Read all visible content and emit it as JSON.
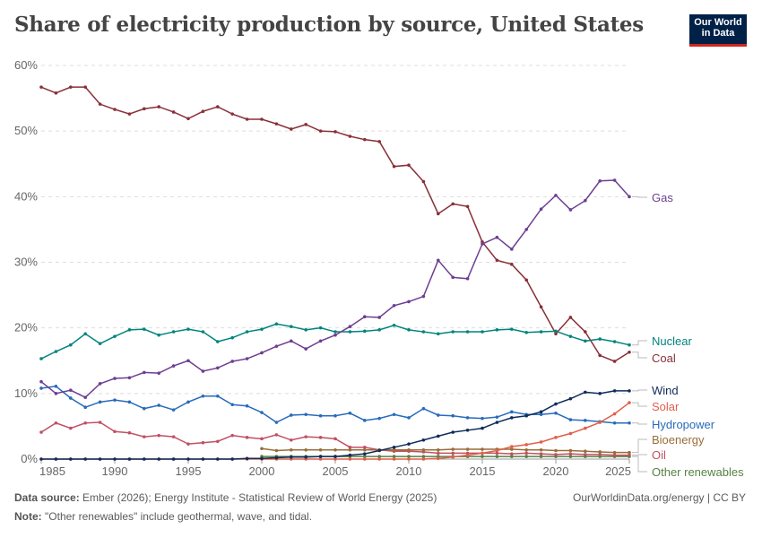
{
  "title": "Share of electricity production by source, United States",
  "logo": {
    "line1": "Our World",
    "line2": "in Data",
    "bg": "#002147",
    "accent": "#ce261e"
  },
  "footer": {
    "source_label": "Data source:",
    "source_text": "Ember (2026); Energy Institute - Statistical Review of World Energy (2025)",
    "note_label": "Note:",
    "note_text": "\"Other renewables\" include geothermal, wave, and tidal.",
    "url": "OurWorldinData.org/energy | CC BY"
  },
  "chart_data": {
    "type": "line",
    "title": "Share of electricity production by source, United States",
    "xlim": [
      1985,
      2025
    ],
    "ylim": [
      0,
      60
    ],
    "y_ticks": [
      "0%",
      "10%",
      "20%",
      "30%",
      "40%",
      "50%",
      "60%"
    ],
    "x_ticks": [
      "1985",
      "1990",
      "1995",
      "2000",
      "2005",
      "2010",
      "2015",
      "2020",
      "2025"
    ],
    "grid": "horizontal dashed",
    "legend": "right, inline labels",
    "series": [
      {
        "name": "Gas",
        "color": "#6d3e91",
        "start": 1985,
        "values": [
          11.8,
          10.0,
          10.5,
          9.4,
          11.5,
          12.3,
          12.4,
          13.2,
          13.1,
          14.2,
          15.0,
          13.4,
          13.9,
          14.9,
          15.3,
          16.2,
          17.2,
          18.0,
          16.8,
          18.0,
          18.9,
          20.2,
          21.7,
          21.6,
          23.4,
          24.0,
          24.8,
          30.3,
          27.7,
          27.5,
          32.8,
          33.8,
          32.0,
          35.0,
          38.1,
          40.2,
          38.0,
          39.4,
          42.4,
          42.5,
          40.0
        ]
      },
      {
        "name": "Nuclear",
        "color": "#00847e",
        "start": 1985,
        "values": [
          15.3,
          16.4,
          17.4,
          19.1,
          17.6,
          18.7,
          19.7,
          19.8,
          18.9,
          19.4,
          19.8,
          19.4,
          17.9,
          18.5,
          19.4,
          19.8,
          20.6,
          20.2,
          19.7,
          20.0,
          19.4,
          19.4,
          19.5,
          19.7,
          20.4,
          19.7,
          19.4,
          19.1,
          19.4,
          19.4,
          19.4,
          19.7,
          19.8,
          19.3,
          19.4,
          19.5,
          18.7,
          18.0,
          18.3,
          17.9,
          17.4
        ]
      },
      {
        "name": "Coal",
        "color": "#883039",
        "start": 1985,
        "values": [
          56.7,
          55.8,
          56.7,
          56.7,
          54.1,
          53.3,
          52.6,
          53.4,
          53.7,
          52.9,
          51.9,
          53.0,
          53.7,
          52.6,
          51.8,
          51.8,
          51.1,
          50.3,
          51.0,
          50.0,
          49.9,
          49.2,
          48.7,
          48.4,
          44.6,
          44.8,
          42.3,
          37.4,
          38.9,
          38.5,
          33.1,
          30.3,
          29.7,
          27.3,
          23.2,
          19.1,
          21.6,
          19.4,
          15.8,
          14.9,
          16.3
        ]
      },
      {
        "name": "Wind",
        "color": "#0f2d5a",
        "start": 1985,
        "values": [
          0,
          0,
          0,
          0,
          0,
          0,
          0,
          0,
          0,
          0,
          0,
          0,
          0,
          0,
          0.1,
          0.1,
          0.2,
          0.3,
          0.3,
          0.4,
          0.4,
          0.6,
          0.8,
          1.3,
          1.8,
          2.3,
          2.9,
          3.5,
          4.1,
          4.4,
          4.7,
          5.6,
          6.3,
          6.6,
          7.2,
          8.4,
          9.2,
          10.2,
          10.0,
          10.4,
          10.4
        ]
      },
      {
        "name": "Solar",
        "color": "#e0604a",
        "start": 1985,
        "values": [
          0,
          0,
          0,
          0,
          0,
          0,
          0,
          0,
          0,
          0,
          0,
          0,
          0,
          0,
          0,
          0,
          0,
          0,
          0,
          0,
          0,
          0,
          0,
          0,
          0,
          0,
          0,
          0.1,
          0.3,
          0.6,
          0.9,
          1.3,
          1.9,
          2.2,
          2.6,
          3.3,
          3.9,
          4.7,
          5.6,
          6.9,
          8.6
        ]
      },
      {
        "name": "Hydropower",
        "color": "#286bbb",
        "start": 1985,
        "values": [
          10.8,
          11.1,
          9.3,
          7.9,
          8.7,
          9.0,
          8.7,
          7.7,
          8.2,
          7.5,
          8.7,
          9.6,
          9.6,
          8.3,
          8.1,
          7.1,
          5.6,
          6.7,
          6.8,
          6.6,
          6.6,
          7.0,
          5.9,
          6.2,
          6.8,
          6.3,
          7.7,
          6.7,
          6.6,
          6.3,
          6.2,
          6.4,
          7.2,
          6.8,
          6.8,
          7.0,
          6.0,
          5.9,
          5.7,
          5.5,
          5.5
        ]
      },
      {
        "name": "Bioenergy",
        "color": "#996d39",
        "start": 2000,
        "values": [
          1.6,
          1.3,
          1.4,
          1.4,
          1.4,
          1.4,
          1.4,
          1.4,
          1.4,
          1.4,
          1.4,
          1.4,
          1.4,
          1.5,
          1.5,
          1.5,
          1.5,
          1.5,
          1.4,
          1.4,
          1.3,
          1.3,
          1.2,
          1.1,
          1.0,
          1.0
        ]
      },
      {
        "name": "Oil",
        "color": "#c15065",
        "start": 1985,
        "values": [
          4.1,
          5.5,
          4.7,
          5.5,
          5.6,
          4.2,
          4.0,
          3.4,
          3.6,
          3.4,
          2.3,
          2.5,
          2.7,
          3.6,
          3.3,
          3.1,
          3.7,
          2.9,
          3.4,
          3.3,
          3.1,
          1.8,
          1.8,
          1.4,
          1.2,
          1.2,
          1.1,
          0.9,
          0.9,
          0.9,
          0.9,
          0.9,
          0.8,
          0.9,
          0.8,
          0.7,
          0.8,
          0.7,
          0.7,
          0.6,
          0.6
        ]
      },
      {
        "name": "Other renewables",
        "color": "#578145",
        "start": 2000,
        "values": [
          0.4,
          0.4,
          0.4,
          0.4,
          0.4,
          0.4,
          0.4,
          0.4,
          0.4,
          0.4,
          0.4,
          0.4,
          0.4,
          0.4,
          0.4,
          0.4,
          0.4,
          0.4,
          0.4,
          0.4,
          0.4,
          0.4,
          0.4,
          0.4,
          0.4,
          0.4
        ]
      }
    ]
  }
}
